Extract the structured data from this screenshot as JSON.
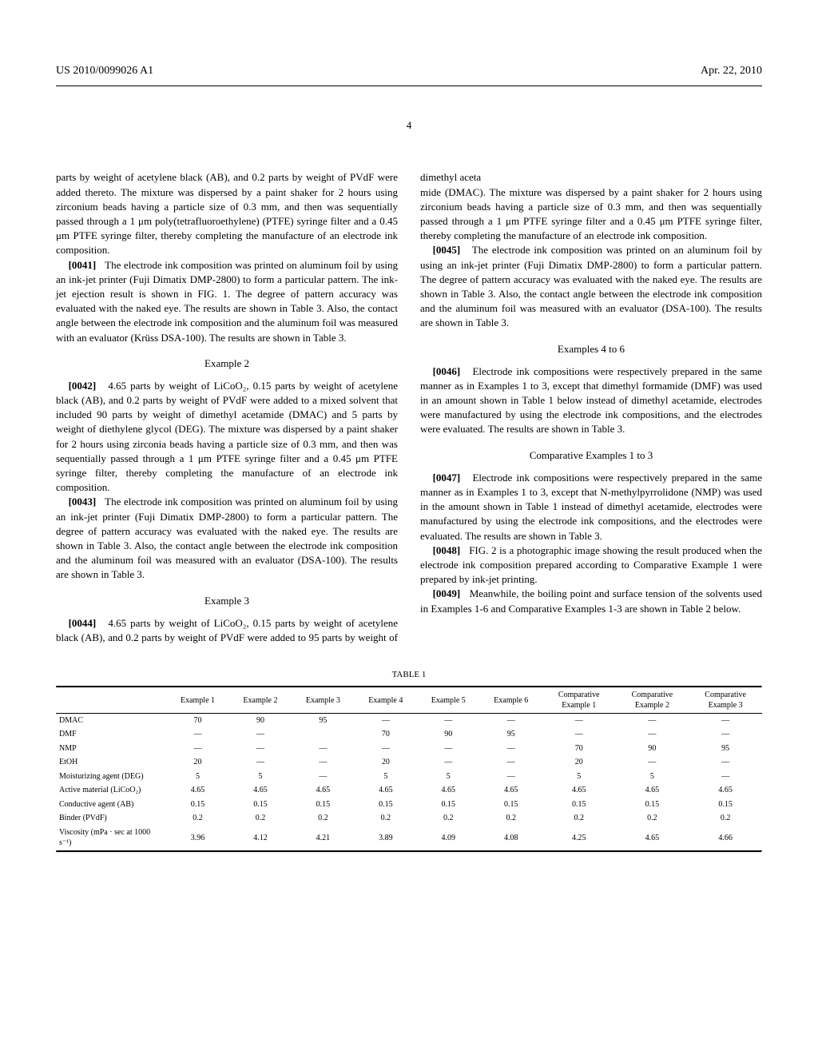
{
  "header": {
    "pub_number": "US 2010/0099026 A1",
    "date": "Apr. 22, 2010",
    "page": "4"
  },
  "col1": {
    "p0_cont": "parts by weight of acetylene black (AB), and 0.2 parts by weight of PVdF were added thereto. The mixture was dispersed by a paint shaker for 2 hours using zirconium beads having a particle size of 0.3 mm, and then was sequentially passed through a 1 μm poly(tetrafluoroethylene) (PTFE) syringe filter and a 0.45 μm PTFE syringe filter, thereby completing the manufacture of an electrode ink composition.",
    "p41_num": "[0041]",
    "p41": "The electrode ink composition was printed on aluminum foil by using an ink-jet printer (Fuji Dimatix DMP-2800) to form a particular pattern. The ink-jet ejection result is shown in FIG. 1. The degree of pattern accuracy was evaluated with the naked eye. The results are shown in Table 3. Also, the contact angle between the electrode ink composition and the aluminum foil was measured with an evaluator (Krüss DSA-100). The results are shown in Table 3.",
    "ex2_title": "Example 2",
    "p42_num": "[0042]",
    "p42": "4.65 parts by weight of LiCoO₂, 0.15 parts by weight of acetylene black (AB), and 0.2 parts by weight of PVdF were added to a mixed solvent that included 90 parts by weight of dimethyl acetamide (DMAC) and 5 parts by weight of diethylene glycol (DEG). The mixture was dispersed by a paint shaker for 2 hours using zirconia beads having a particle size of 0.3 mm, and then was sequentially passed through a 1 μm PTFE syringe filter and a 0.45 μm PTFE syringe filter, thereby completing the manufacture of an electrode ink composition.",
    "p43_num": "[0043]",
    "p43": "The electrode ink composition was printed on aluminum foil by using an ink-jet printer (Fuji Dimatix DMP-2800) to form a particular pattern. The degree of pattern accuracy was evaluated with the naked eye. The results are shown in Table 3. Also, the contact angle between the electrode ink composition and the aluminum foil was measured with an evaluator (DSA-100). The results are shown in Table 3.",
    "ex3_title": "Example 3",
    "p44_num": "[0044]",
    "p44": "4.65 parts by weight of LiCoO₂, 0.15 parts by weight of acetylene black (AB), and 0.2 parts by weight of PVdF were added to 95 parts by weight of dimethyl aceta"
  },
  "col2": {
    "p44_cont": "mide (DMAC). The mixture was dispersed by a paint shaker for 2 hours using zirconium beads having a particle size of 0.3 mm, and then was sequentially passed through a 1 μm PTFE syringe filter and a 0.45 μm PTFE syringe filter, thereby completing the manufacture of an electrode ink composition.",
    "p45_num": "[0045]",
    "p45": "The electrode ink composition was printed on an aluminum foil by using an ink-jet printer (Fuji Dimatix DMP-2800) to form a particular pattern. The degree of pattern accuracy was evaluated with the naked eye. The results are shown in Table 3. Also, the contact angle between the electrode ink composition and the aluminum foil was measured with an evaluator (DSA-100). The results are shown in Table 3.",
    "ex46_title": "Examples 4 to 6",
    "p46_num": "[0046]",
    "p46": "Electrode ink compositions were respectively prepared in the same manner as in Examples 1 to 3, except that dimethyl formamide (DMF) was used in an amount shown in Table 1 below instead of dimethyl acetamide, electrodes were manufactured by using the electrode ink compositions, and the electrodes were evaluated. The results are shown in Table 3.",
    "comp_title": "Comparative Examples 1 to 3",
    "p47_num": "[0047]",
    "p47": "Electrode ink compositions were respectively prepared in the same manner as in Examples 1 to 3, except that N-methylpyrrolidone (NMP) was used in the amount shown in Table 1 instead of dimethyl acetamide, electrodes were manufactured by using the electrode ink compositions, and the electrodes were evaluated. The results are shown in Table 3.",
    "p48_num": "[0048]",
    "p48": "FIG. 2 is a photographic image showing the result produced when the electrode ink composition prepared according to Comparative Example 1 were prepared by ink-jet printing.",
    "p49_num": "[0049]",
    "p49": "Meanwhile, the boiling point and surface tension of the solvents used in Examples 1-6 and Comparative Examples 1-3 are shown in Table 2 below."
  },
  "table1": {
    "label": "TABLE 1",
    "headers": [
      "",
      "Example 1",
      "Example 2",
      "Example 3",
      "Example 4",
      "Example 5",
      "Example 6",
      "Comparative Example 1",
      "Comparative Example 2",
      "Comparative Example 3"
    ],
    "rows": [
      {
        "label": "DMAC",
        "v": [
          "70",
          "90",
          "95",
          "—",
          "—",
          "—",
          "—",
          "—",
          "—"
        ]
      },
      {
        "label": "DMF",
        "v": [
          "—",
          "—",
          "",
          "70",
          "90",
          "95",
          "—",
          "—",
          "—"
        ]
      },
      {
        "label": "NMP",
        "v": [
          "—",
          "—",
          "—",
          "—",
          "—",
          "—",
          "70",
          "90",
          "95"
        ]
      },
      {
        "label": "EtOH",
        "v": [
          "20",
          "—",
          "—",
          "20",
          "—",
          "—",
          "20",
          "—",
          "—"
        ]
      },
      {
        "label": "Moisturizing agent (DEG)",
        "v": [
          "5",
          "5",
          "—",
          "5",
          "5",
          "—",
          "5",
          "5",
          "—"
        ]
      },
      {
        "label": "Active material (LiCoO₂)",
        "v": [
          "4.65",
          "4.65",
          "4.65",
          "4.65",
          "4.65",
          "4.65",
          "4.65",
          "4.65",
          "4.65"
        ]
      },
      {
        "label": "Conductive agent (AB)",
        "v": [
          "0.15",
          "0.15",
          "0.15",
          "0.15",
          "0.15",
          "0.15",
          "0.15",
          "0.15",
          "0.15"
        ]
      },
      {
        "label": "Binder (PVdF)",
        "v": [
          "0.2",
          "0.2",
          "0.2",
          "0.2",
          "0.2",
          "0.2",
          "0.2",
          "0.2",
          "0.2"
        ]
      },
      {
        "label": "Viscosity (mPa · sec at 1000 s⁻¹)",
        "v": [
          "3.96",
          "4.12",
          "4.21",
          "3.89",
          "4.09",
          "4.08",
          "4.25",
          "4.65",
          "4.66"
        ]
      }
    ]
  }
}
